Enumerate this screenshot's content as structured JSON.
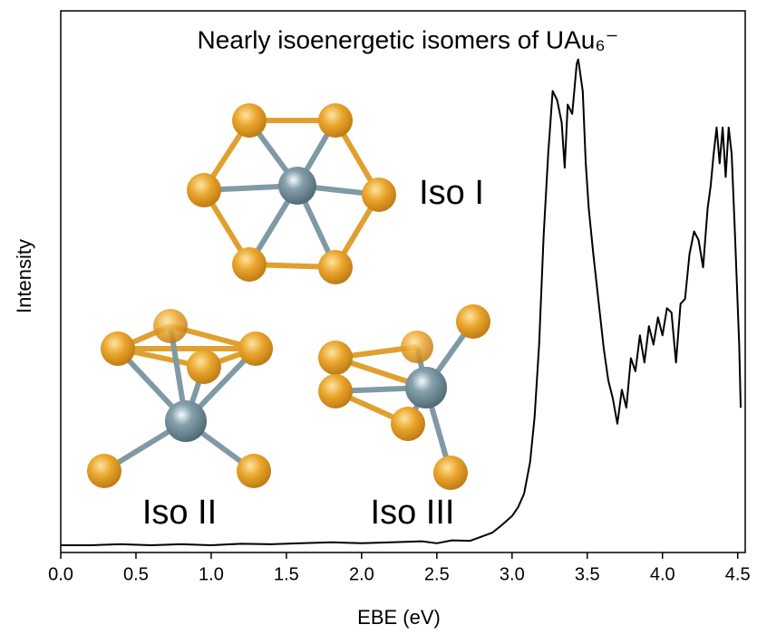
{
  "chart_data": {
    "type": "line",
    "title": "Nearly isoenergetic isomers of UAu₆⁻",
    "x_label": "EBE (eV)",
    "y_label": "Intensity",
    "annotations": [
      "Iso I",
      "Iso II",
      "Iso III"
    ],
    "color": "#000000",
    "x": [
      0.0,
      0.2,
      0.4,
      0.6,
      0.8,
      1.0,
      1.2,
      1.4,
      1.6,
      1.8,
      2.0,
      2.2,
      2.4,
      2.5,
      2.6,
      2.72,
      2.87,
      2.93,
      3.0,
      3.04,
      3.08,
      3.12,
      3.15,
      3.18,
      3.21,
      3.24,
      3.27,
      3.3,
      3.33,
      3.35,
      3.37,
      3.4,
      3.43,
      3.44,
      3.47,
      3.49,
      3.51,
      3.54,
      3.58,
      3.61,
      3.64,
      3.67,
      3.7,
      3.73,
      3.76,
      3.79,
      3.82,
      3.85,
      3.88,
      3.91,
      3.94,
      3.97,
      4.0,
      4.03,
      4.06,
      4.09,
      4.12,
      4.15,
      4.18,
      4.21,
      4.24,
      4.27,
      4.3,
      4.32,
      4.34,
      4.36,
      4.38,
      4.4,
      4.42,
      4.44,
      4.46,
      4.48,
      4.51,
      4.52
    ],
    "values": [
      0,
      0,
      0.002,
      0,
      0.002,
      0,
      0.003,
      0.002,
      0.004,
      0.006,
      0.004,
      0.006,
      0.008,
      0.004,
      0.01,
      0.009,
      0.026,
      0.041,
      0.06,
      0.078,
      0.106,
      0.171,
      0.264,
      0.413,
      0.637,
      0.804,
      0.935,
      0.916,
      0.87,
      0.777,
      0.907,
      0.888,
      0.991,
      1.0,
      0.935,
      0.786,
      0.693,
      0.6,
      0.488,
      0.404,
      0.339,
      0.302,
      0.25,
      0.32,
      0.283,
      0.385,
      0.358,
      0.432,
      0.376,
      0.451,
      0.413,
      0.469,
      0.432,
      0.488,
      0.479,
      0.376,
      0.497,
      0.507,
      0.6,
      0.646,
      0.628,
      0.572,
      0.693,
      0.739,
      0.805,
      0.86,
      0.786,
      0.86,
      0.758,
      0.86,
      0.805,
      0.656,
      0.413,
      0.283
    ],
    "xlim": [
      0,
      4.55
    ],
    "ylim": [
      -0.015,
      1.1
    ],
    "xticks": [
      {
        "value": 0,
        "label": "0.0"
      },
      0.5,
      {
        "value": 1,
        "label": "1.0"
      },
      1.5,
      {
        "value": 2,
        "label": "2.0"
      },
      2.5,
      {
        "value": 3,
        "label": "3.0"
      },
      3.5,
      {
        "value": 4,
        "label": "4.0"
      },
      4.5
    ]
  }
}
